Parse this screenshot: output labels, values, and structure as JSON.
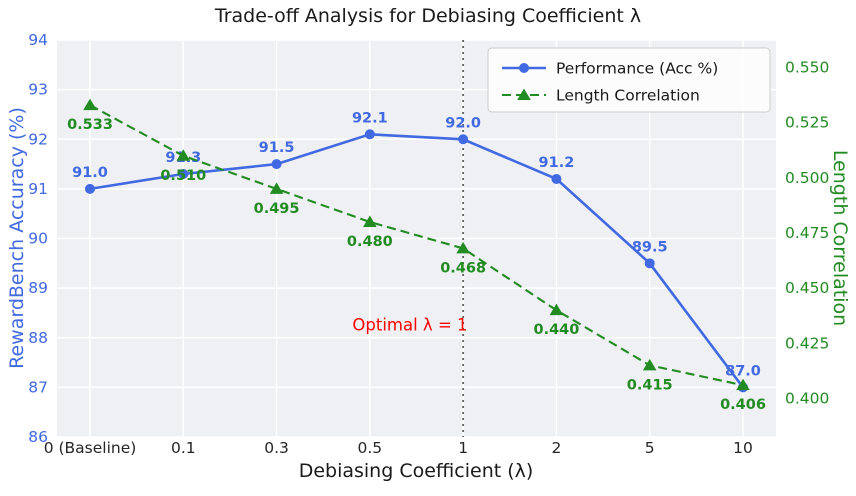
{
  "title": "Trade-off Analysis for Debiasing Coefficient λ",
  "chart_data": {
    "type": "line",
    "categories": [
      "0 (Baseline)",
      "0.1",
      "0.3",
      "0.5",
      "1",
      "2",
      "5",
      "10"
    ],
    "xlabel": "Debiasing Coefficient (λ)",
    "background": "#eef0f4",
    "grid": true,
    "series": [
      {
        "name": "Performance (Acc %)",
        "axis": "left",
        "color": "#4169e1",
        "marker": "circle",
        "dash": "solid",
        "values": [
          91.0,
          91.3,
          91.5,
          92.1,
          92.0,
          91.2,
          89.5,
          87.0
        ],
        "labels": [
          "91.0",
          "91.3",
          "91.5",
          "92.1",
          "92.0",
          "91.2",
          "89.5",
          "87.0"
        ]
      },
      {
        "name": "Length Correlation",
        "axis": "right",
        "color": "#228b22",
        "marker": "triangle",
        "dash": "dashed",
        "values": [
          0.533,
          0.51,
          0.495,
          0.48,
          0.468,
          0.44,
          0.415,
          0.406
        ],
        "labels": [
          "0.533",
          "0.510",
          "0.495",
          "0.480",
          "0.468",
          "0.440",
          "0.415",
          "0.406"
        ]
      }
    ],
    "left_axis": {
      "label": "RewardBench Accuracy (%)",
      "color": "#4169e1",
      "min": 86,
      "max": 94,
      "ticks": [
        86,
        87,
        88,
        89,
        90,
        91,
        92,
        93,
        94
      ]
    },
    "right_axis": {
      "label": "Length Correlation",
      "color": "#228b22",
      "min": 0.3825,
      "max": 0.5625,
      "ticks": [
        "0.400",
        "0.425",
        "0.450",
        "0.475",
        "0.500",
        "0.525",
        "0.550"
      ]
    },
    "vline": {
      "x_category": "1",
      "x_index": 4,
      "color": "#606060",
      "style": "dotted"
    },
    "annotation": {
      "text": "Optimal λ = 1",
      "color": "#ff0000",
      "x_index": 3.43,
      "y_value": 88.15
    },
    "legend": {
      "position": "upper right",
      "entries": [
        "Performance (Acc %)",
        "Length Correlation"
      ]
    }
  }
}
